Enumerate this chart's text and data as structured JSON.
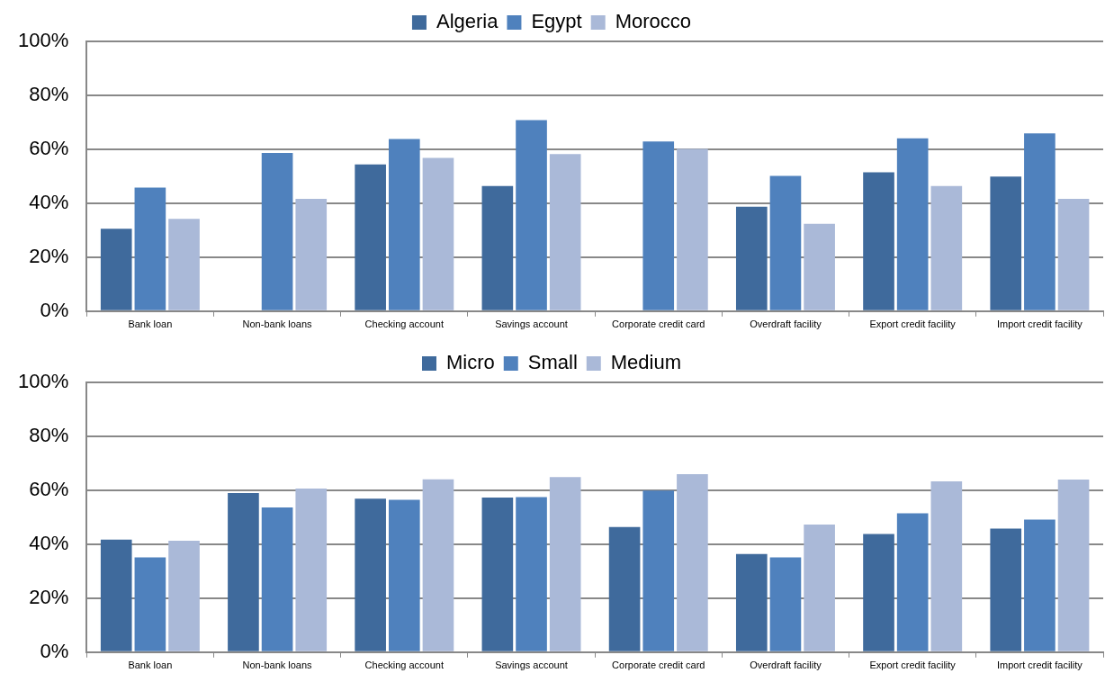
{
  "chart_data": [
    {
      "type": "bar",
      "categories": [
        "Bank loan",
        "Non-bank loans",
        "Checking account",
        "Savings account",
        "Corporate credit card",
        "Overdraft facility",
        "Export credit facility",
        "Import credit facility"
      ],
      "series": [
        {
          "name": "Algeria",
          "color": "#3f6a9c",
          "values": [
            30.5,
            null,
            54.4,
            46.4,
            null,
            38.7,
            51.5,
            49.9
          ]
        },
        {
          "name": "Egypt",
          "color": "#4f81bd",
          "values": [
            45.8,
            58.6,
            63.8,
            70.8,
            62.9,
            50.1,
            64.1,
            65.9
          ]
        },
        {
          "name": "Morocco",
          "color": "#aab9d8",
          "values": [
            34.2,
            41.6,
            56.8,
            58.2,
            60.1,
            32.4,
            46.4,
            41.6
          ]
        }
      ],
      "ylim": [
        0,
        100
      ],
      "yticks": [
        {
          "value": 0,
          "label": "0%"
        },
        {
          "value": 20,
          "label": "20%"
        },
        {
          "value": 40,
          "label": "40%"
        },
        {
          "value": 60,
          "label": "60%"
        },
        {
          "value": 80,
          "label": "80%"
        },
        {
          "value": 100,
          "label": "100%"
        }
      ],
      "grid": "y",
      "legend": "top"
    },
    {
      "type": "bar",
      "categories": [
        "Bank loan",
        "Non-bank loans",
        "Checking account",
        "Savings account",
        "Corporate credit card",
        "Overdraft facility",
        "Export credit facility",
        "Import credit facility"
      ],
      "series": [
        {
          "name": "Micro",
          "color": "#3f6a9c",
          "values": [
            41.7,
            59.0,
            56.9,
            57.3,
            46.4,
            36.4,
            43.8,
            45.8
          ]
        },
        {
          "name": "Small",
          "color": "#4f81bd",
          "values": [
            35.1,
            53.6,
            56.5,
            57.5,
            59.9,
            35.1,
            51.5,
            49.1
          ]
        },
        {
          "name": "Medium",
          "color": "#aab9d8",
          "values": [
            41.3,
            60.6,
            64.1,
            64.9,
            66.0,
            47.3,
            63.3,
            64.0
          ]
        }
      ],
      "ylim": [
        0,
        100
      ],
      "yticks": [
        {
          "value": 0,
          "label": "0%"
        },
        {
          "value": 20,
          "label": "20%"
        },
        {
          "value": 40,
          "label": "40%"
        },
        {
          "value": 60,
          "label": "60%"
        },
        {
          "value": 80,
          "label": "80%"
        },
        {
          "value": 100,
          "label": "100%"
        }
      ],
      "grid": "y",
      "legend": "top"
    }
  ]
}
